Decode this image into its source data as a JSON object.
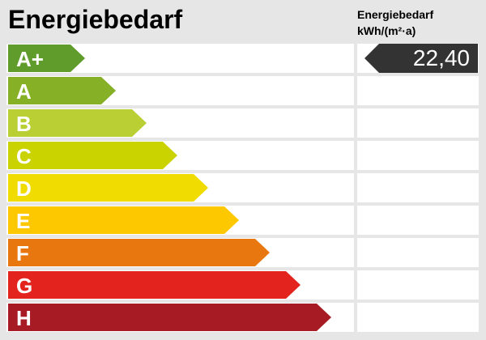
{
  "title": "Energiebedarf",
  "value_header": {
    "line1": "Energiebedarf",
    "line2": "kWh/(m²·a)"
  },
  "value": "22,40",
  "value_class": "A+",
  "classes": [
    {
      "label": "A+",
      "color": "#5f9c2c"
    },
    {
      "label": "A",
      "color": "#86b025"
    },
    {
      "label": "B",
      "color": "#b9cf34"
    },
    {
      "label": "C",
      "color": "#cad300"
    },
    {
      "label": "D",
      "color": "#f0dc00"
    },
    {
      "label": "E",
      "color": "#fdc800"
    },
    {
      "label": "F",
      "color": "#e97710"
    },
    {
      "label": "G",
      "color": "#e2231e"
    },
    {
      "label": "H",
      "color": "#a71c24"
    }
  ]
}
